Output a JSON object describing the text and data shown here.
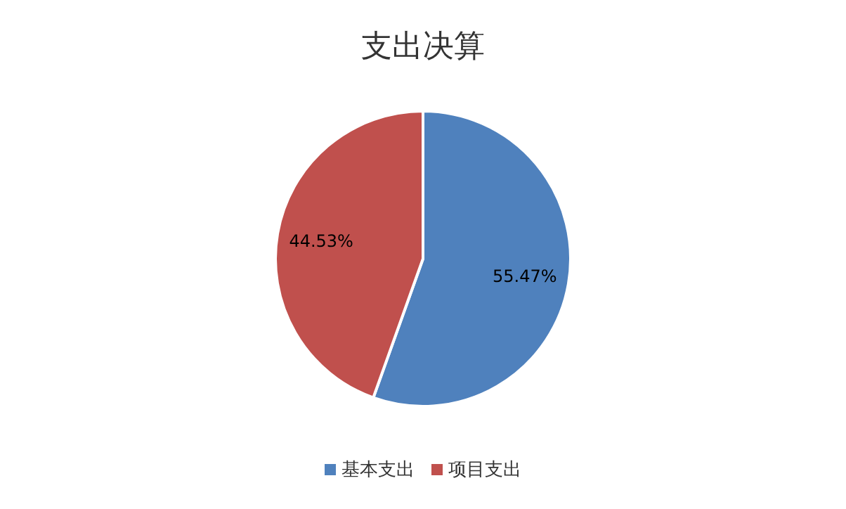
{
  "chart_data": {
    "type": "pie",
    "title": "支出决算",
    "categories": [
      "基本支出",
      "项目支出"
    ],
    "values": [
      55.47,
      44.53
    ],
    "colors": [
      "#4f81bd",
      "#c0504d"
    ],
    "value_labels": [
      "55.47%",
      "44.53%"
    ],
    "legend": "bottom"
  }
}
